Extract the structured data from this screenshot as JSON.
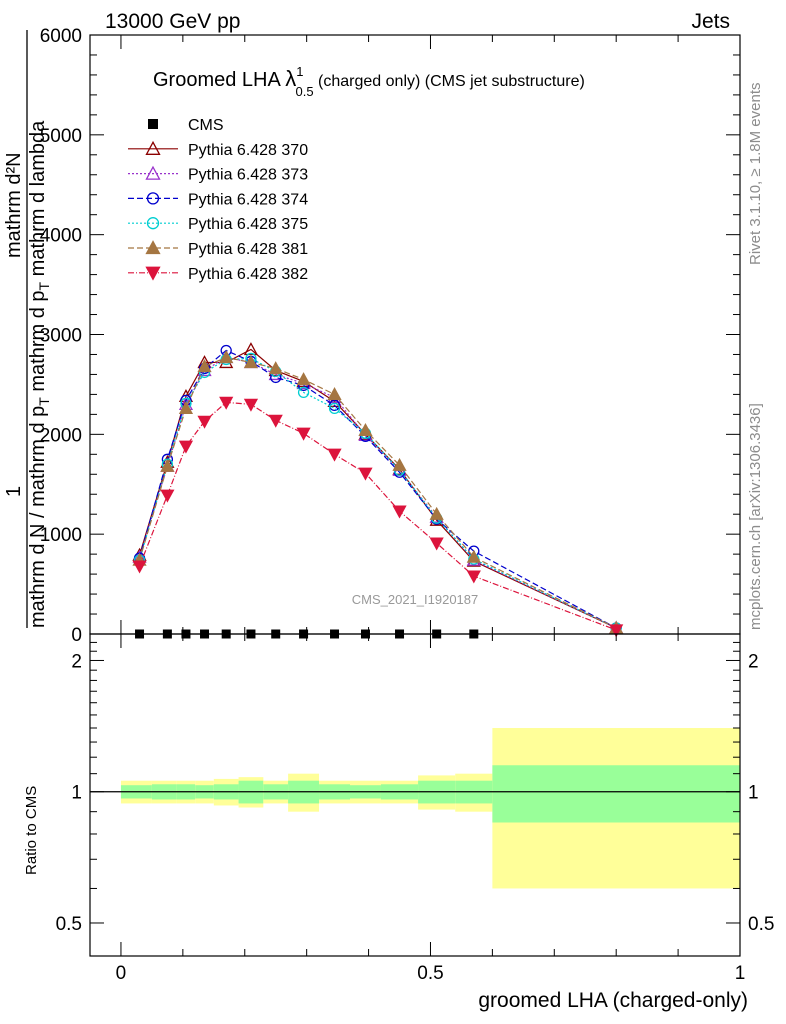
{
  "header": {
    "left": "13000 GeV pp",
    "right": "Jets"
  },
  "side_labels": {
    "rivet": "Rivet 3.1.10, ≥ 1.8M events",
    "mcplots": "mcplots.cern.ch [arXiv:1306.3436]"
  },
  "plot_title": {
    "main": "Groomed LHA",
    "lambda": "λ",
    "sup": "1",
    "sub": "0.5",
    "rest": " (charged only) (CMS jet substructure)"
  },
  "watermark": "CMS_2021_I1920187",
  "ylabel_main": {
    "numerator": "mathrm d²N",
    "one": "1",
    "denominator": "mathrm d N / mathrm d p",
    "sub_t": "T",
    "rest": " mathrm d p",
    "sub_t2": "T",
    "rest2": " mathrm d lambda"
  },
  "ylabel_ratio": "Ratio to CMS",
  "xlabel": "groomed LHA (charged-only)",
  "chart_data": [
    {
      "type": "line",
      "xlim": [
        -0.05,
        1.0
      ],
      "ylim": [
        0,
        6000
      ],
      "yticks": [
        1000,
        2000,
        3000,
        4000,
        5000,
        6000
      ],
      "ytick_labels": [
        "1000",
        "2000",
        "3000",
        "4000",
        "5000",
        "6000"
      ],
      "x": [
        0.03,
        0.075,
        0.105,
        0.135,
        0.17,
        0.21,
        0.25,
        0.295,
        0.345,
        0.395,
        0.45,
        0.51,
        0.57,
        0.8
      ],
      "series": [
        {
          "name": "CMS",
          "color": "#000000",
          "marker": "square",
          "values": [
            0,
            0,
            0,
            0,
            0,
            0,
            0,
            0,
            0,
            0,
            0,
            0,
            0,
            null
          ]
        },
        {
          "name": "Pythia 6.428 370",
          "color": "#8b0000",
          "marker": "triangle-open",
          "dash": "",
          "values": [
            790,
            1720,
            2380,
            2720,
            2720,
            2850,
            2640,
            2530,
            2330,
            2000,
            1650,
            1140,
            730,
            60
          ]
        },
        {
          "name": "Pythia 6.428 373",
          "color": "#9932cc",
          "marker": "triangle-open",
          "dash": "2,2",
          "values": [
            770,
            1680,
            2300,
            2640,
            2770,
            2720,
            2600,
            2510,
            2370,
            1990,
            1640,
            1170,
            740,
            60
          ]
        },
        {
          "name": "Pythia 6.428 374",
          "color": "#0000cd",
          "marker": "circle-open",
          "dash": "6,3",
          "values": [
            760,
            1750,
            2340,
            2660,
            2840,
            2730,
            2570,
            2490,
            2290,
            1980,
            1620,
            1150,
            830,
            60
          ]
        },
        {
          "name": "Pythia 6.428 375",
          "color": "#00ced1",
          "marker": "circle-open",
          "dash": "2,2",
          "values": [
            740,
            1700,
            2310,
            2620,
            2750,
            2760,
            2630,
            2420,
            2260,
            2010,
            1640,
            1160,
            750,
            60
          ]
        },
        {
          "name": "Pythia 6.428 381",
          "color": "#a57642",
          "marker": "triangle-filled",
          "dash": "6,3",
          "values": [
            740,
            1680,
            2260,
            2680,
            2770,
            2720,
            2660,
            2550,
            2400,
            2040,
            1690,
            1200,
            770,
            60
          ]
        },
        {
          "name": "Pythia 6.428 382",
          "color": "#dc143c",
          "marker": "triangle-down-filled",
          "dash": "6,2,1,2",
          "values": [
            680,
            1390,
            1880,
            2130,
            2320,
            2300,
            2140,
            2010,
            1800,
            1610,
            1230,
            910,
            580,
            40
          ]
        }
      ]
    },
    {
      "type": "area",
      "xlim": [
        -0.05,
        1.0
      ],
      "ylim": [
        0.42,
        2.3
      ],
      "yticks": [
        0.5,
        1,
        2
      ],
      "ytick_labels": [
        "0.5",
        "1",
        "2"
      ],
      "xticks": [
        0,
        0.5,
        1
      ],
      "xtick_labels": [
        "0",
        "0.5",
        "1"
      ],
      "bins": [
        0,
        0.05,
        0.09,
        0.12,
        0.15,
        0.19,
        0.23,
        0.27,
        0.32,
        0.37,
        0.42,
        0.48,
        0.54,
        0.6,
        1.0
      ],
      "stat_band": [
        0.035,
        0.04,
        0.04,
        0.035,
        0.04,
        0.06,
        0.04,
        0.06,
        0.04,
        0.035,
        0.04,
        0.06,
        0.06,
        0.15
      ],
      "total_band": [
        0.06,
        0.06,
        0.06,
        0.06,
        0.07,
        0.08,
        0.06,
        0.1,
        0.06,
        0.06,
        0.06,
        0.09,
        0.1,
        0.4
      ],
      "reference": 1
    }
  ]
}
